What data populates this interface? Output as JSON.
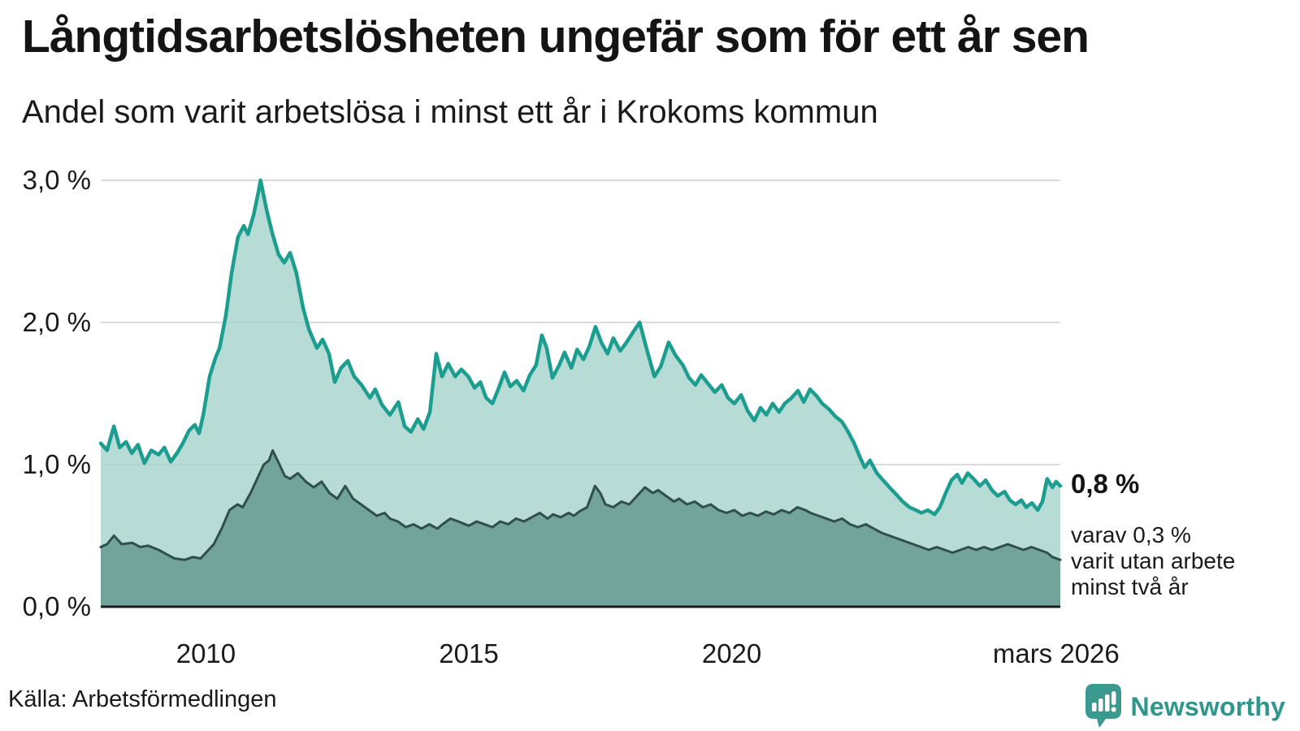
{
  "header": {
    "title": "Långtidsarbetslösheten ungefär som för ett år sen",
    "subtitle": "Andel som varit arbetslösa i minst ett år i Krokoms kommun"
  },
  "annotation": {
    "value_label": "0,8 %",
    "note": "varav 0,3 %\nvarit utan arbete\nminst två år"
  },
  "footer": {
    "source": "Källa: Arbetsförmedlingen",
    "brand": "Newsworthy"
  },
  "colors": {
    "total_line": "#1b9e8f",
    "total_fill": "#a7d4cd",
    "twoyear_line": "#2f4f4a",
    "twoyear_fill": "#6fa099",
    "gridline": "#dcdcdc",
    "baseline": "#1a1a1a",
    "brand_teal": "#3a9a8f",
    "brand_text": "#2e968b",
    "text": "#1a1a1a"
  },
  "chart_data": {
    "type": "area",
    "mode": "overlay",
    "title": "Andel som varit arbetslösa i minst ett år i Krokoms kommun",
    "x_range": [
      2008.0,
      2026.25
    ],
    "y_range": [
      0.0,
      3.2
    ],
    "y_unit": "%",
    "grid": "horizontal",
    "y_ticks": [
      {
        "label": "3,0 %",
        "value": 3.0
      },
      {
        "label": "2,0 %",
        "value": 2.0
      },
      {
        "label": "1,0 %",
        "value": 1.0
      },
      {
        "label": "0,0 %",
        "value": 0.0
      }
    ],
    "x_ticks": [
      {
        "label": "2010",
        "value": 2010.0
      },
      {
        "label": "2015",
        "value": 2015.0
      },
      {
        "label": "2020",
        "value": 2020.0
      },
      {
        "label": "mars 2026",
        "value": 2026.17
      }
    ],
    "series": [
      {
        "name": "arbetslösa minst ett år",
        "end_label": "0,8 %",
        "points": [
          [
            2008.0,
            1.15
          ],
          [
            2008.12,
            1.1
          ],
          [
            2008.25,
            1.27
          ],
          [
            2008.36,
            1.12
          ],
          [
            2008.48,
            1.16
          ],
          [
            2008.59,
            1.08
          ],
          [
            2008.71,
            1.14
          ],
          [
            2008.83,
            1.01
          ],
          [
            2008.96,
            1.1
          ],
          [
            2009.1,
            1.07
          ],
          [
            2009.21,
            1.12
          ],
          [
            2009.33,
            1.02
          ],
          [
            2009.45,
            1.08
          ],
          [
            2009.56,
            1.15
          ],
          [
            2009.68,
            1.24
          ],
          [
            2009.79,
            1.28
          ],
          [
            2009.87,
            1.22
          ],
          [
            2009.95,
            1.35
          ],
          [
            2010.07,
            1.62
          ],
          [
            2010.18,
            1.75
          ],
          [
            2010.26,
            1.82
          ],
          [
            2010.38,
            2.05
          ],
          [
            2010.49,
            2.35
          ],
          [
            2010.61,
            2.6
          ],
          [
            2010.72,
            2.68
          ],
          [
            2010.8,
            2.62
          ],
          [
            2010.91,
            2.76
          ],
          [
            2011.0,
            2.92
          ],
          [
            2011.04,
            3.0
          ],
          [
            2011.15,
            2.8
          ],
          [
            2011.26,
            2.63
          ],
          [
            2011.38,
            2.48
          ],
          [
            2011.49,
            2.42
          ],
          [
            2011.6,
            2.49
          ],
          [
            2011.72,
            2.35
          ],
          [
            2011.85,
            2.1
          ],
          [
            2011.96,
            1.95
          ],
          [
            2012.11,
            1.82
          ],
          [
            2012.22,
            1.88
          ],
          [
            2012.34,
            1.78
          ],
          [
            2012.45,
            1.58
          ],
          [
            2012.57,
            1.68
          ],
          [
            2012.7,
            1.73
          ],
          [
            2012.82,
            1.62
          ],
          [
            2012.96,
            1.56
          ],
          [
            2013.12,
            1.47
          ],
          [
            2013.22,
            1.53
          ],
          [
            2013.35,
            1.42
          ],
          [
            2013.5,
            1.35
          ],
          [
            2013.66,
            1.44
          ],
          [
            2013.78,
            1.27
          ],
          [
            2013.9,
            1.23
          ],
          [
            2014.03,
            1.32
          ],
          [
            2014.14,
            1.25
          ],
          [
            2014.26,
            1.37
          ],
          [
            2014.38,
            1.78
          ],
          [
            2014.49,
            1.62
          ],
          [
            2014.61,
            1.71
          ],
          [
            2014.74,
            1.62
          ],
          [
            2014.86,
            1.67
          ],
          [
            2014.99,
            1.62
          ],
          [
            2015.11,
            1.54
          ],
          [
            2015.22,
            1.58
          ],
          [
            2015.33,
            1.47
          ],
          [
            2015.45,
            1.43
          ],
          [
            2015.56,
            1.53
          ],
          [
            2015.68,
            1.65
          ],
          [
            2015.79,
            1.55
          ],
          [
            2015.91,
            1.59
          ],
          [
            2016.04,
            1.52
          ],
          [
            2016.16,
            1.63
          ],
          [
            2016.28,
            1.7
          ],
          [
            2016.39,
            1.91
          ],
          [
            2016.48,
            1.82
          ],
          [
            2016.59,
            1.61
          ],
          [
            2016.72,
            1.7
          ],
          [
            2016.82,
            1.79
          ],
          [
            2016.95,
            1.68
          ],
          [
            2017.06,
            1.81
          ],
          [
            2017.18,
            1.74
          ],
          [
            2017.29,
            1.83
          ],
          [
            2017.41,
            1.97
          ],
          [
            2017.52,
            1.86
          ],
          [
            2017.64,
            1.78
          ],
          [
            2017.75,
            1.89
          ],
          [
            2017.88,
            1.8
          ],
          [
            2018.0,
            1.86
          ],
          [
            2018.12,
            1.93
          ],
          [
            2018.25,
            2.0
          ],
          [
            2018.37,
            1.83
          ],
          [
            2018.53,
            1.62
          ],
          [
            2018.65,
            1.69
          ],
          [
            2018.8,
            1.86
          ],
          [
            2018.93,
            1.77
          ],
          [
            2019.07,
            1.7
          ],
          [
            2019.19,
            1.61
          ],
          [
            2019.31,
            1.56
          ],
          [
            2019.42,
            1.63
          ],
          [
            2019.55,
            1.57
          ],
          [
            2019.68,
            1.51
          ],
          [
            2019.81,
            1.56
          ],
          [
            2019.93,
            1.47
          ],
          [
            2020.05,
            1.43
          ],
          [
            2020.18,
            1.49
          ],
          [
            2020.3,
            1.38
          ],
          [
            2020.43,
            1.31
          ],
          [
            2020.55,
            1.4
          ],
          [
            2020.66,
            1.35
          ],
          [
            2020.78,
            1.43
          ],
          [
            2020.9,
            1.37
          ],
          [
            2021.01,
            1.43
          ],
          [
            2021.14,
            1.47
          ],
          [
            2021.26,
            1.52
          ],
          [
            2021.37,
            1.44
          ],
          [
            2021.49,
            1.53
          ],
          [
            2021.62,
            1.48
          ],
          [
            2021.72,
            1.43
          ],
          [
            2021.85,
            1.39
          ],
          [
            2021.97,
            1.34
          ],
          [
            2022.1,
            1.3
          ],
          [
            2022.2,
            1.24
          ],
          [
            2022.33,
            1.15
          ],
          [
            2022.43,
            1.06
          ],
          [
            2022.53,
            0.98
          ],
          [
            2022.63,
            1.03
          ],
          [
            2022.76,
            0.94
          ],
          [
            2022.88,
            0.89
          ],
          [
            2023.0,
            0.84
          ],
          [
            2023.13,
            0.79
          ],
          [
            2023.25,
            0.74
          ],
          [
            2023.38,
            0.7
          ],
          [
            2023.5,
            0.68
          ],
          [
            2023.61,
            0.66
          ],
          [
            2023.73,
            0.68
          ],
          [
            2023.86,
            0.65
          ],
          [
            2023.96,
            0.7
          ],
          [
            2024.07,
            0.8
          ],
          [
            2024.18,
            0.89
          ],
          [
            2024.29,
            0.93
          ],
          [
            2024.38,
            0.87
          ],
          [
            2024.49,
            0.94
          ],
          [
            2024.6,
            0.9
          ],
          [
            2024.72,
            0.85
          ],
          [
            2024.83,
            0.89
          ],
          [
            2024.95,
            0.82
          ],
          [
            2025.06,
            0.78
          ],
          [
            2025.19,
            0.81
          ],
          [
            2025.29,
            0.75
          ],
          [
            2025.4,
            0.72
          ],
          [
            2025.51,
            0.75
          ],
          [
            2025.6,
            0.7
          ],
          [
            2025.71,
            0.73
          ],
          [
            2025.82,
            0.68
          ],
          [
            2025.91,
            0.74
          ],
          [
            2026.0,
            0.9
          ],
          [
            2026.1,
            0.84
          ],
          [
            2026.17,
            0.88
          ],
          [
            2026.25,
            0.85
          ]
        ]
      },
      {
        "name": "varit utan arbete minst två år",
        "end_label": "0,3 %",
        "points": [
          [
            2008.0,
            0.42
          ],
          [
            2008.12,
            0.44
          ],
          [
            2008.25,
            0.5
          ],
          [
            2008.4,
            0.44
          ],
          [
            2008.6,
            0.45
          ],
          [
            2008.75,
            0.42
          ],
          [
            2008.9,
            0.43
          ],
          [
            2009.1,
            0.4
          ],
          [
            2009.25,
            0.37
          ],
          [
            2009.4,
            0.34
          ],
          [
            2009.6,
            0.33
          ],
          [
            2009.75,
            0.35
          ],
          [
            2009.9,
            0.34
          ],
          [
            2010.0,
            0.38
          ],
          [
            2010.15,
            0.44
          ],
          [
            2010.3,
            0.55
          ],
          [
            2010.45,
            0.68
          ],
          [
            2010.6,
            0.72
          ],
          [
            2010.7,
            0.7
          ],
          [
            2010.85,
            0.8
          ],
          [
            2011.0,
            0.92
          ],
          [
            2011.1,
            1.0
          ],
          [
            2011.2,
            1.03
          ],
          [
            2011.27,
            1.1
          ],
          [
            2011.4,
            1.0
          ],
          [
            2011.5,
            0.92
          ],
          [
            2011.6,
            0.9
          ],
          [
            2011.75,
            0.94
          ],
          [
            2011.9,
            0.88
          ],
          [
            2012.05,
            0.84
          ],
          [
            2012.2,
            0.88
          ],
          [
            2012.35,
            0.8
          ],
          [
            2012.5,
            0.76
          ],
          [
            2012.65,
            0.85
          ],
          [
            2012.8,
            0.76
          ],
          [
            2012.95,
            0.72
          ],
          [
            2013.1,
            0.68
          ],
          [
            2013.25,
            0.64
          ],
          [
            2013.4,
            0.66
          ],
          [
            2013.5,
            0.62
          ],
          [
            2013.65,
            0.6
          ],
          [
            2013.8,
            0.56
          ],
          [
            2013.95,
            0.58
          ],
          [
            2014.1,
            0.55
          ],
          [
            2014.25,
            0.58
          ],
          [
            2014.4,
            0.55
          ],
          [
            2014.5,
            0.58
          ],
          [
            2014.65,
            0.62
          ],
          [
            2014.8,
            0.6
          ],
          [
            2015.0,
            0.57
          ],
          [
            2015.15,
            0.6
          ],
          [
            2015.3,
            0.58
          ],
          [
            2015.45,
            0.56
          ],
          [
            2015.6,
            0.6
          ],
          [
            2015.75,
            0.58
          ],
          [
            2015.9,
            0.62
          ],
          [
            2016.05,
            0.6
          ],
          [
            2016.2,
            0.63
          ],
          [
            2016.35,
            0.66
          ],
          [
            2016.5,
            0.62
          ],
          [
            2016.6,
            0.65
          ],
          [
            2016.75,
            0.63
          ],
          [
            2016.9,
            0.66
          ],
          [
            2017.0,
            0.64
          ],
          [
            2017.1,
            0.67
          ],
          [
            2017.25,
            0.7
          ],
          [
            2017.4,
            0.85
          ],
          [
            2017.5,
            0.8
          ],
          [
            2017.6,
            0.72
          ],
          [
            2017.75,
            0.7
          ],
          [
            2017.9,
            0.74
          ],
          [
            2018.05,
            0.72
          ],
          [
            2018.2,
            0.78
          ],
          [
            2018.35,
            0.84
          ],
          [
            2018.5,
            0.8
          ],
          [
            2018.6,
            0.82
          ],
          [
            2018.75,
            0.78
          ],
          [
            2018.9,
            0.74
          ],
          [
            2019.0,
            0.76
          ],
          [
            2019.15,
            0.72
          ],
          [
            2019.3,
            0.74
          ],
          [
            2019.45,
            0.7
          ],
          [
            2019.6,
            0.72
          ],
          [
            2019.75,
            0.68
          ],
          [
            2019.9,
            0.66
          ],
          [
            2020.05,
            0.68
          ],
          [
            2020.2,
            0.64
          ],
          [
            2020.35,
            0.66
          ],
          [
            2020.5,
            0.64
          ],
          [
            2020.65,
            0.67
          ],
          [
            2020.8,
            0.65
          ],
          [
            2020.95,
            0.68
          ],
          [
            2021.1,
            0.66
          ],
          [
            2021.25,
            0.7
          ],
          [
            2021.4,
            0.68
          ],
          [
            2021.5,
            0.66
          ],
          [
            2021.65,
            0.64
          ],
          [
            2021.8,
            0.62
          ],
          [
            2021.95,
            0.6
          ],
          [
            2022.1,
            0.62
          ],
          [
            2022.25,
            0.58
          ],
          [
            2022.4,
            0.56
          ],
          [
            2022.55,
            0.58
          ],
          [
            2022.7,
            0.55
          ],
          [
            2022.85,
            0.52
          ],
          [
            2023.0,
            0.5
          ],
          [
            2023.15,
            0.48
          ],
          [
            2023.3,
            0.46
          ],
          [
            2023.45,
            0.44
          ],
          [
            2023.6,
            0.42
          ],
          [
            2023.75,
            0.4
          ],
          [
            2023.9,
            0.42
          ],
          [
            2024.05,
            0.4
          ],
          [
            2024.2,
            0.38
          ],
          [
            2024.35,
            0.4
          ],
          [
            2024.5,
            0.42
          ],
          [
            2024.65,
            0.4
          ],
          [
            2024.8,
            0.42
          ],
          [
            2024.95,
            0.4
          ],
          [
            2025.1,
            0.42
          ],
          [
            2025.25,
            0.44
          ],
          [
            2025.4,
            0.42
          ],
          [
            2025.55,
            0.4
          ],
          [
            2025.7,
            0.42
          ],
          [
            2025.85,
            0.4
          ],
          [
            2026.0,
            0.38
          ],
          [
            2026.1,
            0.35
          ],
          [
            2026.25,
            0.33
          ]
        ]
      }
    ]
  }
}
